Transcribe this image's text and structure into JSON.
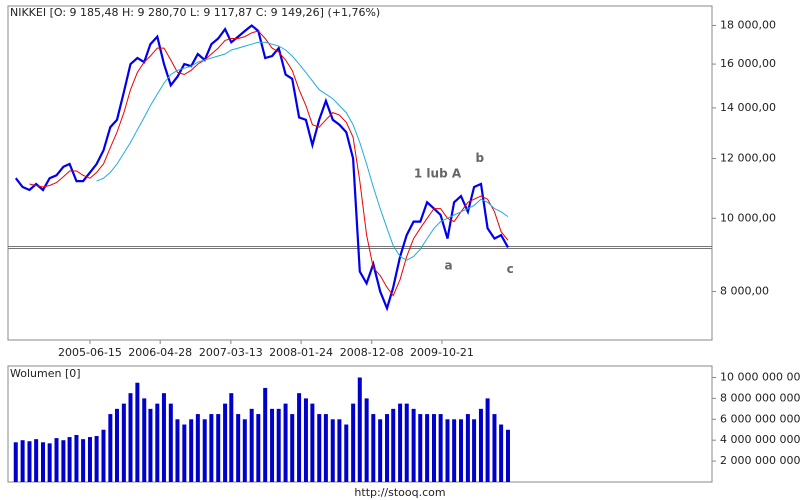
{
  "chart_data": [
    {
      "type": "line",
      "title": "NIKKEI [O: 9 185,48  H: 9 280,70  L: 9 117,87  C: 9 149,26] (+1,76%)",
      "log_scale": true,
      "x": [
        "2004-07-15",
        "2004-08-15",
        "2004-09-15",
        "2004-10-15",
        "2004-11-15",
        "2004-12-15",
        "2005-01-15",
        "2005-02-15",
        "2005-03-15",
        "2005-04-15",
        "2005-05-15",
        "2005-06-15",
        "2005-07-15",
        "2005-08-15",
        "2005-09-15",
        "2005-10-15",
        "2005-11-15",
        "2005-12-15",
        "2006-01-15",
        "2006-02-15",
        "2006-03-15",
        "2006-04-15",
        "2006-05-15",
        "2006-06-15",
        "2006-07-15",
        "2006-08-15",
        "2006-09-15",
        "2006-10-15",
        "2006-11-15",
        "2006-12-15",
        "2007-01-15",
        "2007-02-15",
        "2007-03-15",
        "2007-04-15",
        "2007-05-15",
        "2007-06-15",
        "2007-07-15",
        "2007-08-15",
        "2007-09-15",
        "2007-10-15",
        "2007-11-15",
        "2007-12-15",
        "2008-01-15",
        "2008-02-15",
        "2008-03-15",
        "2008-04-15",
        "2008-05-15",
        "2008-06-15",
        "2008-07-15",
        "2008-08-15",
        "2008-09-15",
        "2008-10-15",
        "2008-11-15",
        "2008-12-15",
        "2009-01-15",
        "2009-02-15",
        "2009-03-15",
        "2009-04-15",
        "2009-05-15",
        "2009-06-15",
        "2009-07-15",
        "2009-08-15",
        "2009-09-15",
        "2009-10-15",
        "2009-11-15",
        "2009-12-15",
        "2010-01-15",
        "2010-02-15",
        "2010-03-15",
        "2010-04-15",
        "2010-05-15",
        "2010-06-15",
        "2010-07-15",
        "2010-08-15"
      ],
      "series": [
        {
          "color": "#0000ee",
          "values": [
            11300,
            11000,
            10900,
            11100,
            10900,
            11300,
            11400,
            11700,
            11800,
            11200,
            11200,
            11500,
            11800,
            12300,
            13200,
            13500,
            14700,
            16000,
            16300,
            16100,
            17000,
            17400,
            16000,
            15000,
            15400,
            16000,
            15900,
            16500,
            16200,
            17000,
            17300,
            17800,
            17100,
            17400,
            17700,
            18000,
            17700,
            16300,
            16400,
            16800,
            15500,
            15300,
            13600,
            13500,
            12500,
            13500,
            14300,
            13500,
            13300,
            13000,
            12000,
            8500,
            8200,
            8700,
            8000,
            7600,
            8100,
            8900,
            9500,
            9900,
            9900,
            10500,
            10300,
            10100,
            9400,
            10500,
            10700,
            10200,
            11000,
            11100,
            9700,
            9400,
            9500,
            9150
          ]
        },
        {
          "color": "#ee0000",
          "values": [
            null,
            null,
            11100,
            11050,
            11000,
            11050,
            11150,
            11350,
            11550,
            11550,
            11400,
            11300,
            11500,
            11800,
            12400,
            13000,
            13800,
            14800,
            15600,
            16100,
            16400,
            16800,
            16800,
            16200,
            15600,
            15500,
            15700,
            16000,
            16200,
            16500,
            16800,
            17200,
            17300,
            17300,
            17400,
            17600,
            17700,
            17300,
            16800,
            16600,
            16200,
            15700,
            14800,
            14100,
            13300,
            13200,
            13500,
            13800,
            13700,
            13400,
            12800,
            11200,
            9500,
            8600,
            8400,
            8100,
            7900,
            8300,
            8900,
            9400,
            9700,
            10000,
            10300,
            10300,
            10000,
            9900,
            10200,
            10500,
            10600,
            10700,
            10600,
            10200,
            9600,
            9350
          ]
        },
        {
          "color": "#22aadd",
          "values": [
            null,
            null,
            null,
            null,
            null,
            null,
            null,
            null,
            null,
            null,
            null,
            null,
            11200,
            11300,
            11500,
            11800,
            12200,
            12600,
            13100,
            13600,
            14100,
            14600,
            15100,
            15500,
            15700,
            15800,
            15900,
            16100,
            16200,
            16300,
            16400,
            16500,
            16700,
            16800,
            16900,
            17000,
            17100,
            17100,
            17000,
            16900,
            16700,
            16400,
            16000,
            15600,
            15200,
            14800,
            14600,
            14400,
            14100,
            13800,
            13300,
            12600,
            11800,
            11000,
            10300,
            9700,
            9200,
            8900,
            8800,
            8900,
            9100,
            9400,
            9700,
            9900,
            10000,
            10100,
            10200,
            10300,
            10400,
            10600,
            10500,
            10300,
            10200,
            10050
          ]
        }
      ],
      "xlim": [
        "2004-06-10",
        "2013-02-21"
      ],
      "xticks": [
        "2005-06-15",
        "2006-04-28",
        "2007-03-13",
        "2008-01-24",
        "2008-12-08",
        "2009-10-21"
      ],
      "ylim": [
        6900,
        19100
      ],
      "yticks": [
        {
          "value": 8000,
          "label": "8 000,00"
        },
        {
          "value": 10000,
          "label": "10 000,00"
        },
        {
          "value": 12000,
          "label": "12 000,00"
        },
        {
          "value": 14000,
          "label": "14 000,00"
        },
        {
          "value": 16000,
          "label": "16 000,00"
        },
        {
          "value": 18000,
          "label": "18 000,00"
        }
      ],
      "reference_line": 9149.26,
      "annotations": [
        {
          "text": "1 lub A",
          "x": "2009-10-01",
          "y": 11450
        },
        {
          "text": "a",
          "x": "2009-11-20",
          "y": 8650
        },
        {
          "text": "b",
          "x": "2010-04-10",
          "y": 12000
        },
        {
          "text": "c",
          "x": "2010-08-25",
          "y": 8550
        }
      ]
    },
    {
      "type": "bar",
      "title": "Wolumen [0]",
      "color": "#0000cc",
      "x": [
        "2004-07-15",
        "2004-08-15",
        "2004-09-15",
        "2004-10-15",
        "2004-11-15",
        "2004-12-15",
        "2005-01-15",
        "2005-02-15",
        "2005-03-15",
        "2005-04-15",
        "2005-05-15",
        "2005-06-15",
        "2005-07-15",
        "2005-08-15",
        "2005-09-15",
        "2005-10-15",
        "2005-11-15",
        "2005-12-15",
        "2006-01-15",
        "2006-02-15",
        "2006-03-15",
        "2006-04-15",
        "2006-05-15",
        "2006-06-15",
        "2006-07-15",
        "2006-08-15",
        "2006-09-15",
        "2006-10-15",
        "2006-11-15",
        "2006-12-15",
        "2007-01-15",
        "2007-02-15",
        "2007-03-15",
        "2007-04-15",
        "2007-05-15",
        "2007-06-15",
        "2007-07-15",
        "2007-08-15",
        "2007-09-15",
        "2007-10-15",
        "2007-11-15",
        "2007-12-15",
        "2008-01-15",
        "2008-02-15",
        "2008-03-15",
        "2008-04-15",
        "2008-05-15",
        "2008-06-15",
        "2008-07-15",
        "2008-08-15",
        "2008-09-15",
        "2008-10-15",
        "2008-11-15",
        "2008-12-15",
        "2009-01-15",
        "2009-02-15",
        "2009-03-15",
        "2009-04-15",
        "2009-05-15",
        "2009-06-15",
        "2009-07-15",
        "2009-08-15",
        "2009-09-15",
        "2009-10-15",
        "2009-11-15",
        "2009-12-15",
        "2010-01-15",
        "2010-02-15",
        "2010-03-15",
        "2010-04-15",
        "2010-05-15",
        "2010-06-15",
        "2010-07-15",
        "2010-08-15"
      ],
      "values": [
        3800000000,
        4000000000,
        3900000000,
        4100000000,
        3800000000,
        3700000000,
        4200000000,
        4000000000,
        4300000000,
        4500000000,
        4100000000,
        4300000000,
        4400000000,
        5000000000,
        6500000000,
        7000000000,
        7500000000,
        8500000000,
        9500000000,
        8000000000,
        7000000000,
        7500000000,
        8500000000,
        7500000000,
        6000000000,
        5500000000,
        6000000000,
        6500000000,
        6000000000,
        6500000000,
        6500000000,
        7500000000,
        8500000000,
        6500000000,
        6000000000,
        7000000000,
        6500000000,
        9000000000,
        7000000000,
        7000000000,
        7500000000,
        6500000000,
        8500000000,
        8000000000,
        7500000000,
        6500000000,
        6500000000,
        6000000000,
        6000000000,
        5500000000,
        7500000000,
        10000000000,
        8000000000,
        6500000000,
        6000000000,
        6500000000,
        7000000000,
        7500000000,
        7500000000,
        7000000000,
        6500000000,
        6500000000,
        6500000000,
        6500000000,
        6000000000,
        6000000000,
        6000000000,
        6500000000,
        6000000000,
        7000000000,
        8000000000,
        6500000000,
        5500000000,
        5000000000
      ],
      "xlim": [
        "2004-06-10",
        "2013-02-21"
      ],
      "ylim": [
        0,
        11100000000
      ],
      "yticks": [
        {
          "value": 2000000000,
          "label": "2 000 000 000"
        },
        {
          "value": 4000000000,
          "label": "4 000 000 000"
        },
        {
          "value": 6000000000,
          "label": "6 000 000 000"
        },
        {
          "value": 8000000000,
          "label": "8 000 000 000"
        },
        {
          "value": 10000000000,
          "label": "10 000 000 000"
        }
      ]
    }
  ],
  "footer": "http://stooq.com"
}
